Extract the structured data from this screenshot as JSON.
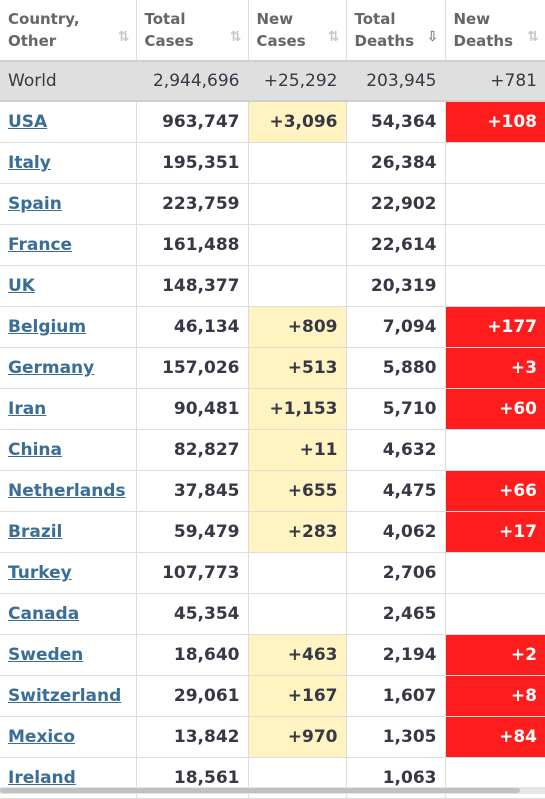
{
  "headers": [
    {
      "label": "Country, Other",
      "sort": "⇅",
      "active": false
    },
    {
      "label": "Total Cases",
      "sort": "⇅",
      "active": false
    },
    {
      "label": "New Cases",
      "sort": "⇅",
      "active": false
    },
    {
      "label": "Total Deaths",
      "sort": "⇩",
      "active": true
    },
    {
      "label": "New Deaths",
      "sort": "⇅",
      "active": false
    }
  ],
  "world": {
    "country": "World",
    "total_cases": "2,944,696",
    "new_cases": "+25,292",
    "total_deaths": "203,945",
    "new_deaths": "+781"
  },
  "rows": [
    {
      "country": "USA",
      "total_cases": "963,747",
      "new_cases": "+3,096",
      "total_deaths": "54,364",
      "new_deaths": "+108"
    },
    {
      "country": "Italy",
      "total_cases": "195,351",
      "new_cases": "",
      "total_deaths": "26,384",
      "new_deaths": ""
    },
    {
      "country": "Spain",
      "total_cases": "223,759",
      "new_cases": "",
      "total_deaths": "22,902",
      "new_deaths": ""
    },
    {
      "country": "France",
      "total_cases": "161,488",
      "new_cases": "",
      "total_deaths": "22,614",
      "new_deaths": ""
    },
    {
      "country": "UK",
      "total_cases": "148,377",
      "new_cases": "",
      "total_deaths": "20,319",
      "new_deaths": ""
    },
    {
      "country": "Belgium",
      "total_cases": "46,134",
      "new_cases": "+809",
      "total_deaths": "7,094",
      "new_deaths": "+177"
    },
    {
      "country": "Germany",
      "total_cases": "157,026",
      "new_cases": "+513",
      "total_deaths": "5,880",
      "new_deaths": "+3"
    },
    {
      "country": "Iran",
      "total_cases": "90,481",
      "new_cases": "+1,153",
      "total_deaths": "5,710",
      "new_deaths": "+60"
    },
    {
      "country": "China",
      "total_cases": "82,827",
      "new_cases": "+11",
      "total_deaths": "4,632",
      "new_deaths": ""
    },
    {
      "country": "Netherlands",
      "total_cases": "37,845",
      "new_cases": "+655",
      "total_deaths": "4,475",
      "new_deaths": "+66"
    },
    {
      "country": "Brazil",
      "total_cases": "59,479",
      "new_cases": "+283",
      "total_deaths": "4,062",
      "new_deaths": "+17"
    },
    {
      "country": "Turkey",
      "total_cases": "107,773",
      "new_cases": "",
      "total_deaths": "2,706",
      "new_deaths": ""
    },
    {
      "country": "Canada",
      "total_cases": "45,354",
      "new_cases": "",
      "total_deaths": "2,465",
      "new_deaths": ""
    },
    {
      "country": "Sweden",
      "total_cases": "18,640",
      "new_cases": "+463",
      "total_deaths": "2,194",
      "new_deaths": "+2"
    },
    {
      "country": "Switzerland",
      "total_cases": "29,061",
      "new_cases": "+167",
      "total_deaths": "1,607",
      "new_deaths": "+8"
    },
    {
      "country": "Mexico",
      "total_cases": "13,842",
      "new_cases": "+970",
      "total_deaths": "1,305",
      "new_deaths": "+84"
    },
    {
      "country": "Ireland",
      "total_cases": "18,561",
      "new_cases": "",
      "total_deaths": "1,063",
      "new_deaths": ""
    }
  ],
  "colors": {
    "new_cases_bg": "#fff3c2",
    "new_deaths_bg": "#ff1c1c",
    "link": "#3a6e96",
    "world_row_bg": "#dfdfdf"
  }
}
